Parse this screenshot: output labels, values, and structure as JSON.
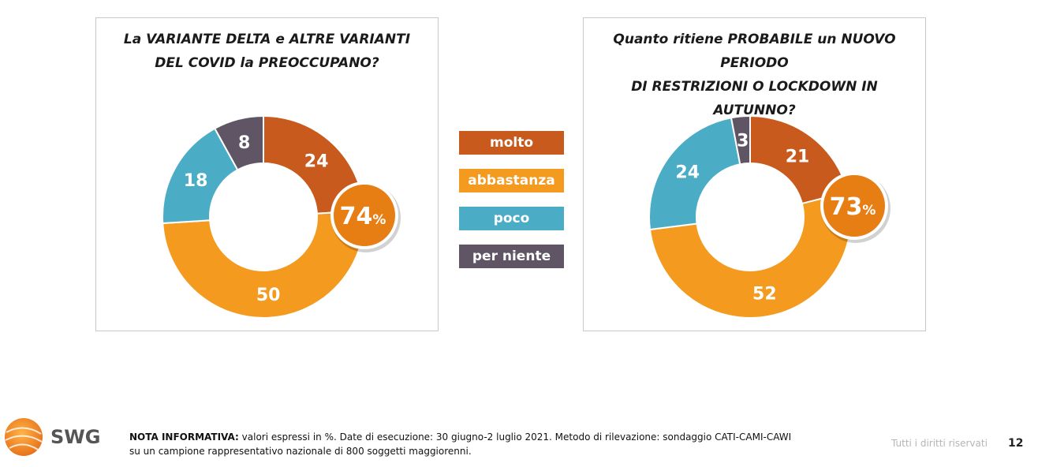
{
  "colors": {
    "molto": "#c85a1e",
    "abbastanza": "#f39a1f",
    "poco": "#4bacc6",
    "per_niente": "#5f5565",
    "badge": "#e67e14"
  },
  "legend": [
    {
      "key": "molto",
      "label": "molto"
    },
    {
      "key": "abbastanza",
      "label": "abbastanza"
    },
    {
      "key": "poco",
      "label": "poco"
    },
    {
      "key": "per_niente",
      "label": "per niente"
    }
  ],
  "chart_data": [
    {
      "type": "donut",
      "title_line1": "La VARIANTE DELTA e ALTRE VARIANTI",
      "title_line2": "DEL COVID la PREOCCUPANO?",
      "categories": [
        "molto",
        "abbastanza",
        "poco",
        "per niente"
      ],
      "values": [
        24,
        50,
        18,
        8
      ],
      "badge": {
        "value": "74",
        "unit": "%"
      }
    },
    {
      "type": "donut",
      "title_line1": "Quanto ritiene PROBABILE un NUOVO PERIODO",
      "title_line2": "DI RESTRIZIONI O LOCKDOWN IN AUTUNNO?",
      "categories": [
        "molto",
        "abbastanza",
        "poco",
        "per niente"
      ],
      "values": [
        21,
        52,
        24,
        3
      ],
      "badge": {
        "value": "73",
        "unit": "%"
      }
    }
  ],
  "footer": {
    "logo_text": "SWG",
    "note_label": "NOTA INFORMATIVA:",
    "note_line1": " valori espressi in %. Date di esecuzione: 30 giugno-2 luglio 2021. Metodo di rilevazione: sondaggio CATI-CAMI-CAWI",
    "note_line2": "su un campione rappresentativo nazionale di 800 soggetti maggiorenni.",
    "rights": "Tutti i diritti riservati",
    "page_number": "12"
  }
}
